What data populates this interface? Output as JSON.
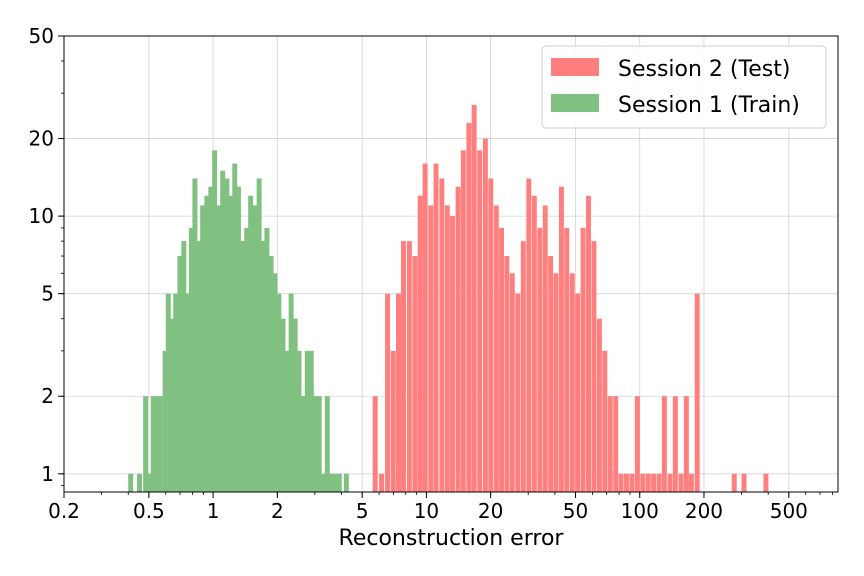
{
  "chart_data": {
    "type": "histogram",
    "xlabel": "Reconstruction error",
    "ylabel": "",
    "x_scale": "log",
    "y_scale": "log",
    "xlim": [
      0.2,
      850
    ],
    "ylim": [
      0.85,
      50
    ],
    "x_ticks": [
      {
        "value": 0.2,
        "label": "0.2"
      },
      {
        "value": 0.5,
        "label": "0.5"
      },
      {
        "value": 1,
        "label": "1"
      },
      {
        "value": 2,
        "label": "2"
      },
      {
        "value": 5,
        "label": "5"
      },
      {
        "value": 10,
        "label": "10"
      },
      {
        "value": 20,
        "label": "20"
      },
      {
        "value": 50,
        "label": "50"
      },
      {
        "value": 100,
        "label": "100"
      },
      {
        "value": 200,
        "label": "200"
      },
      {
        "value": 500,
        "label": "500"
      }
    ],
    "y_ticks": [
      {
        "value": 1,
        "label": "1"
      },
      {
        "value": 2,
        "label": "2"
      },
      {
        "value": 5,
        "label": "5"
      },
      {
        "value": 10,
        "label": "10"
      },
      {
        "value": 20,
        "label": "20"
      },
      {
        "value": 50,
        "label": "50"
      }
    ],
    "grid": true,
    "legend_position": "top-right",
    "series": [
      {
        "name": "Session 2 (Test)",
        "color": "#ff7f7f",
        "bins": [
          [
            5.6,
            2
          ],
          [
            6.0,
            1
          ],
          [
            6.4,
            5
          ],
          [
            6.8,
            3
          ],
          [
            7.2,
            5
          ],
          [
            7.6,
            8
          ],
          [
            8.1,
            8
          ],
          [
            8.6,
            7
          ],
          [
            9.1,
            12
          ],
          [
            9.6,
            16
          ],
          [
            10.2,
            11
          ],
          [
            10.8,
            16
          ],
          [
            11.5,
            14
          ],
          [
            12.2,
            11
          ],
          [
            12.9,
            10
          ],
          [
            13.7,
            13
          ],
          [
            14.5,
            18
          ],
          [
            15.4,
            23
          ],
          [
            16.3,
            27
          ],
          [
            17.3,
            18
          ],
          [
            18.4,
            20
          ],
          [
            19.5,
            14
          ],
          [
            20.7,
            11
          ],
          [
            21.9,
            9
          ],
          [
            23.2,
            7
          ],
          [
            24.6,
            6
          ],
          [
            26.1,
            5
          ],
          [
            27.7,
            8
          ],
          [
            29.4,
            14
          ],
          [
            31.2,
            12
          ],
          [
            33.1,
            9
          ],
          [
            35.1,
            11
          ],
          [
            37.2,
            7
          ],
          [
            39.4,
            6
          ],
          [
            41.8,
            13
          ],
          [
            44.3,
            9
          ],
          [
            47.0,
            6
          ],
          [
            49.8,
            5
          ],
          [
            52.8,
            9
          ],
          [
            56.0,
            12
          ],
          [
            59.4,
            8
          ],
          [
            63.0,
            4
          ],
          [
            66.8,
            3
          ],
          [
            70.8,
            2
          ],
          [
            75.1,
            2
          ],
          [
            79.6,
            1
          ],
          [
            84.4,
            1
          ],
          [
            89.5,
            1
          ],
          [
            94.9,
            2
          ],
          [
            100.6,
            1
          ],
          [
            106.7,
            1
          ],
          [
            113.1,
            1
          ],
          [
            120,
            1
          ],
          [
            127,
            2
          ],
          [
            135,
            1
          ],
          [
            143,
            2
          ],
          [
            152,
            1
          ],
          [
            161,
            2
          ],
          [
            170,
            1
          ],
          [
            181,
            5
          ],
          [
            270,
            1
          ],
          [
            300,
            1
          ],
          [
            380,
            1
          ]
        ]
      },
      {
        "name": "Session 1 (Train)",
        "color": "#80c080",
        "bins": [
          [
            0.4,
            1
          ],
          [
            0.44,
            1
          ],
          [
            0.47,
            2
          ],
          [
            0.49,
            1
          ],
          [
            0.51,
            2
          ],
          [
            0.53,
            2
          ],
          [
            0.55,
            2
          ],
          [
            0.58,
            3
          ],
          [
            0.6,
            5
          ],
          [
            0.62,
            4
          ],
          [
            0.65,
            5
          ],
          [
            0.68,
            7
          ],
          [
            0.71,
            8
          ],
          [
            0.74,
            5
          ],
          [
            0.77,
            9
          ],
          [
            0.8,
            14
          ],
          [
            0.83,
            8
          ],
          [
            0.87,
            11
          ],
          [
            0.91,
            12
          ],
          [
            0.95,
            13
          ],
          [
            0.99,
            18
          ],
          [
            1.03,
            11
          ],
          [
            1.08,
            15
          ],
          [
            1.13,
            14
          ],
          [
            1.18,
            12
          ],
          [
            1.23,
            16
          ],
          [
            1.28,
            13
          ],
          [
            1.34,
            8
          ],
          [
            1.4,
            9
          ],
          [
            1.46,
            12
          ],
          [
            1.53,
            11
          ],
          [
            1.6,
            14
          ],
          [
            1.67,
            8
          ],
          [
            1.74,
            9
          ],
          [
            1.82,
            7
          ],
          [
            1.9,
            6
          ],
          [
            1.98,
            5
          ],
          [
            2.07,
            4
          ],
          [
            2.16,
            3
          ],
          [
            2.26,
            5
          ],
          [
            2.36,
            4
          ],
          [
            2.46,
            3
          ],
          [
            2.57,
            2
          ],
          [
            2.69,
            3
          ],
          [
            2.81,
            3
          ],
          [
            2.93,
            2
          ],
          [
            3.06,
            2
          ],
          [
            3.2,
            1
          ],
          [
            3.34,
            2
          ],
          [
            3.49,
            1
          ],
          [
            3.64,
            1
          ],
          [
            3.8,
            1
          ],
          [
            4.1,
            1
          ]
        ]
      }
    ]
  }
}
